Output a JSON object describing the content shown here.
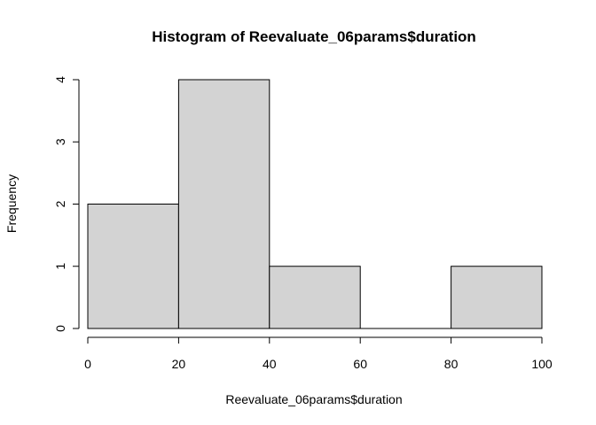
{
  "chart_data": {
    "type": "bar",
    "title": "Histogram of Reevaluate_06params$duration",
    "xlabel": "Reevaluate_06params$duration",
    "ylabel": "Frequency",
    "bins": [
      {
        "from": 0,
        "to": 20,
        "count": 2
      },
      {
        "from": 20,
        "to": 40,
        "count": 4
      },
      {
        "from": 40,
        "to": 60,
        "count": 1
      },
      {
        "from": 60,
        "to": 80,
        "count": 0
      },
      {
        "from": 80,
        "to": 100,
        "count": 1
      }
    ],
    "xlim": [
      0,
      100
    ],
    "ylim": [
      0,
      4
    ],
    "x_ticks": [
      "0",
      "20",
      "40",
      "60",
      "80",
      "100"
    ],
    "y_ticks": [
      "0",
      "1",
      "2",
      "3",
      "4"
    ],
    "grid": false,
    "bar_fill": "#d3d3d3",
    "bar_stroke": "#000000"
  }
}
